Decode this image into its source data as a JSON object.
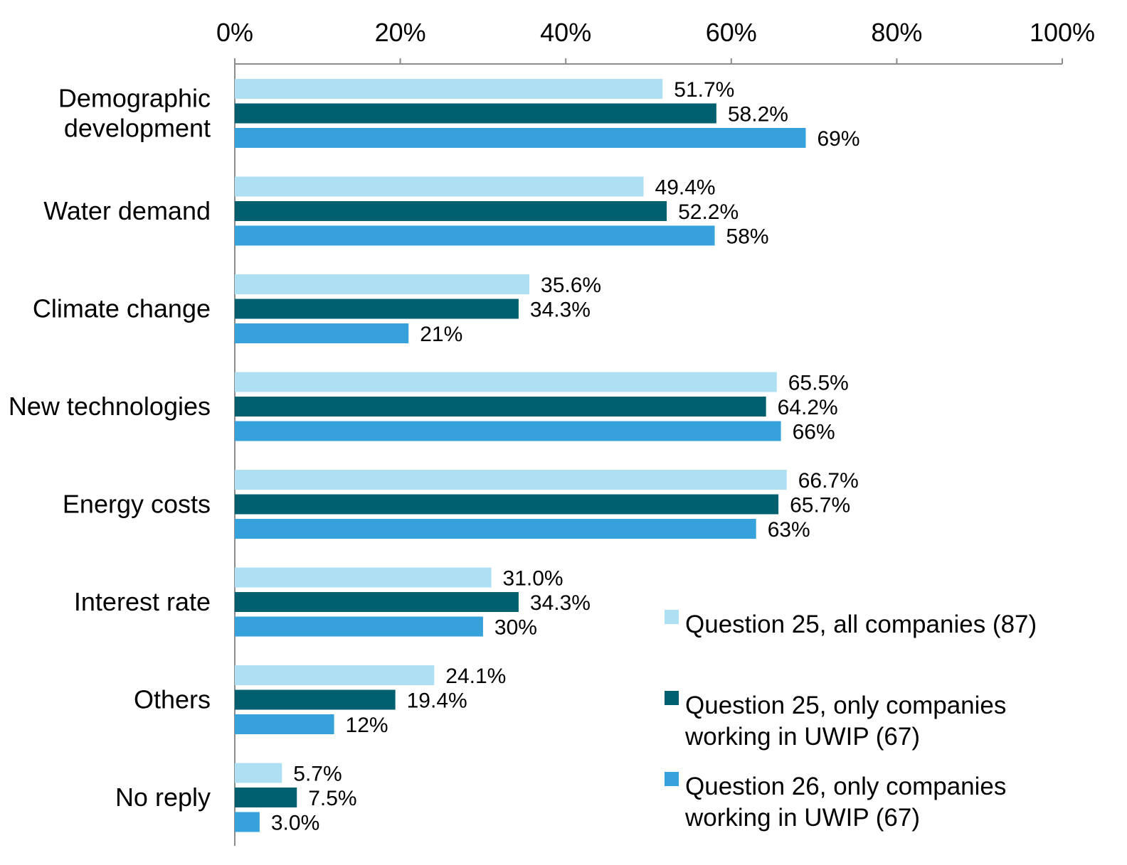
{
  "chart_data": {
    "type": "bar",
    "orientation": "horizontal",
    "categories": [
      [
        "Demographic",
        "development"
      ],
      [
        "Water demand"
      ],
      [
        "Climate change"
      ],
      [
        "New technologies"
      ],
      [
        "Energy costs"
      ],
      [
        "Interest rate"
      ],
      [
        "Others"
      ],
      [
        "No reply"
      ]
    ],
    "series": [
      {
        "name": "Question 25, all companies (87)",
        "legend_lines": [
          "Question 25, all companies (87)"
        ],
        "color": "#aedff3",
        "values": [
          51.7,
          49.4,
          35.6,
          65.5,
          66.7,
          31.0,
          24.1,
          5.7
        ],
        "labels": [
          "51.7%",
          "49.4%",
          "35.6%",
          "65.5%",
          "66.7%",
          "31.0%",
          "24.1%",
          "5.7%"
        ]
      },
      {
        "name": "Question 25, only companies working in UWIP (67)",
        "legend_lines": [
          "Question 25, only companies",
          "working in UWIP (67)"
        ],
        "color": "#006070",
        "values": [
          58.2,
          52.2,
          34.3,
          64.2,
          65.7,
          34.3,
          19.4,
          7.5
        ],
        "labels": [
          "58.2%",
          "52.2%",
          "34.3%",
          "64.2%",
          "65.7%",
          "34.3%",
          "19.4%",
          "7.5%"
        ]
      },
      {
        "name": "Question 26, only companies working in UWIP (67)",
        "legend_lines": [
          "Question 26, only companies",
          "working in UWIP (67)"
        ],
        "color": "#36a1db",
        "values": [
          69,
          58,
          21,
          66,
          63,
          30,
          12,
          3.0
        ],
        "labels": [
          "69%",
          "58%",
          "21%",
          "66%",
          "63%",
          "30%",
          "12%",
          "3.0%"
        ]
      }
    ],
    "xlim": [
      0,
      100
    ],
    "xticks": [
      0,
      20,
      40,
      60,
      80,
      100
    ],
    "xtick_labels": [
      "0%",
      "20%",
      "40%",
      "60%",
      "80%",
      "100%"
    ],
    "axis_position": "top",
    "grid": false,
    "legend_position": "bottom-right"
  }
}
